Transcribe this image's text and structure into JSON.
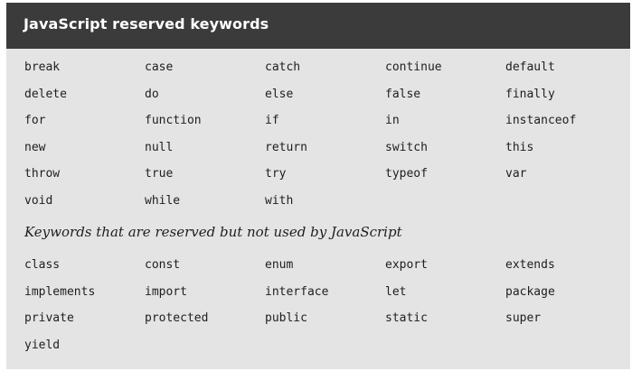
{
  "title": "JavaScript reserved keywords",
  "reserved_rows": [
    [
      "break",
      "case",
      "catch",
      "continue",
      "default"
    ],
    [
      "delete",
      "do",
      "else",
      "false",
      "finally"
    ],
    [
      "for",
      "function",
      "if",
      "in",
      "instanceof"
    ],
    [
      "new",
      "null",
      "return",
      "switch",
      "this"
    ],
    [
      "throw",
      "true",
      "try",
      "typeof",
      "var"
    ],
    [
      "void",
      "while",
      "with",
      "",
      ""
    ]
  ],
  "unused_subtitle": "Keywords that are reserved but not used by JavaScript",
  "unused_rows": [
    [
      "class",
      "const",
      "enum",
      "export",
      "extends"
    ],
    [
      "implements",
      "import",
      "interface",
      "let",
      "package"
    ],
    [
      "private",
      "protected",
      "public",
      "static",
      "super"
    ],
    [
      "yield",
      "",
      "",
      "",
      ""
    ]
  ],
  "colors": {
    "header_bg": "#3b3b3b",
    "panel_bg": "#e4e4e4",
    "text": "#1e1e1e"
  }
}
